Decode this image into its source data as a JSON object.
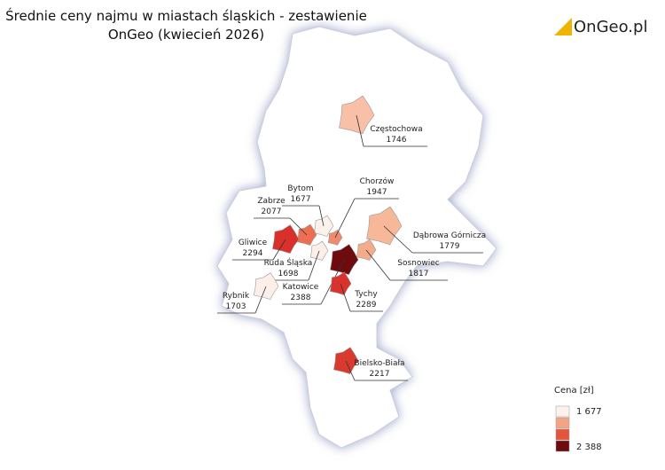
{
  "header": {
    "title": "Średnie ceny najmu w miastach śląskich - zestawienie",
    "subtitle": "OnGeo (kwiecień 2026)",
    "logo": "OnGeo.pl"
  },
  "cities": [
    {
      "name": "Częstochowa",
      "value": 1746,
      "color": "#f8c0a6"
    },
    {
      "name": "Bytom",
      "value": 1677,
      "color": "#fdf1ec"
    },
    {
      "name": "Zabrze",
      "value": 2077,
      "color": "#ee6e52"
    },
    {
      "name": "Chorzów",
      "value": 1947,
      "color": "#f08a6c"
    },
    {
      "name": "Gliwice",
      "value": 2294,
      "color": "#d9302b"
    },
    {
      "name": "Dąbrowa Górnicza",
      "value": 1779,
      "color": "#f6b898"
    },
    {
      "name": "Ruda Śląska",
      "value": 1698,
      "color": "#fcefe9"
    },
    {
      "name": "Sosnowiec",
      "value": 1817,
      "color": "#f4ab8c"
    },
    {
      "name": "Katowice",
      "value": 2388,
      "color": "#6e0b0e"
    },
    {
      "name": "Rybnik",
      "value": 1703,
      "color": "#fcefe9"
    },
    {
      "name": "Tychy",
      "value": 2289,
      "color": "#da322c"
    },
    {
      "name": "Bielsko-Biała",
      "value": 2217,
      "color": "#d83a2e"
    }
  ],
  "legend": {
    "title": "Cena [zł]",
    "min_label": "1 677",
    "max_label": "2 388",
    "colors": [
      "#fdf1ec",
      "#f4a385",
      "#e5553b",
      "#6e0b0e"
    ]
  }
}
